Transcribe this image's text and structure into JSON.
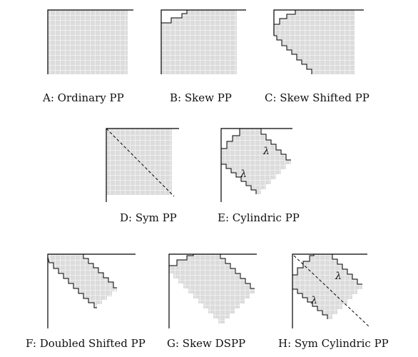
{
  "panels": [
    {
      "id": "A",
      "caption": "A: Ordinary PP"
    },
    {
      "id": "B",
      "caption": "B: Skew PP"
    },
    {
      "id": "C",
      "caption": "C: Skew Shifted PP"
    },
    {
      "id": "D",
      "caption": "D: Sym PP"
    },
    {
      "id": "E",
      "caption": "E: Cylindric PP",
      "labels": [
        "λ",
        "λ"
      ]
    },
    {
      "id": "F",
      "caption": "F: Doubled Shifted PP"
    },
    {
      "id": "G",
      "caption": "G: Skew DSPP"
    },
    {
      "id": "H",
      "caption": "H: Sym Cylindric PP",
      "labels": [
        "λ",
        "λ"
      ]
    }
  ],
  "colors": {
    "cell_fill": "#dcdcdc",
    "grid_line": "#ffffff",
    "frame": "#000000"
  },
  "cell_size": 7
}
